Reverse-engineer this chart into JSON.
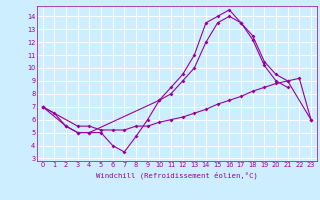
{
  "title": "",
  "xlabel": "Windchill (Refroidissement éolien,°C)",
  "ylabel": "",
  "bg_color": "#cceeff",
  "grid_color": "#ffffff",
  "line_color": "#990099",
  "xlim": [
    -0.5,
    23.5
  ],
  "ylim": [
    2.8,
    14.8
  ],
  "xticks": [
    0,
    1,
    2,
    3,
    4,
    5,
    6,
    7,
    8,
    9,
    10,
    11,
    12,
    13,
    14,
    15,
    16,
    17,
    18,
    19,
    20,
    21,
    22,
    23
  ],
  "yticks": [
    3,
    4,
    5,
    6,
    7,
    8,
    9,
    10,
    11,
    12,
    13,
    14
  ],
  "line1_x": [
    0,
    1,
    2,
    3,
    4,
    5,
    6,
    7,
    8,
    9,
    10,
    11,
    12,
    13,
    14,
    15,
    16,
    17,
    18,
    19,
    20,
    21
  ],
  "line1_y": [
    7.0,
    6.5,
    5.5,
    5.0,
    5.0,
    5.0,
    4.0,
    3.5,
    4.7,
    6.0,
    7.5,
    8.5,
    9.5,
    11.0,
    13.5,
    14.0,
    14.5,
    13.5,
    12.2,
    10.2,
    9.0,
    8.5
  ],
  "line2_x": [
    0,
    3,
    4,
    5,
    6,
    7,
    8,
    9,
    10,
    11,
    12,
    13,
    14,
    15,
    16,
    17,
    18,
    19,
    20,
    21,
    22,
    23
  ],
  "line2_y": [
    7.0,
    5.5,
    5.5,
    5.2,
    5.2,
    5.2,
    5.5,
    5.5,
    5.8,
    6.0,
    6.2,
    6.5,
    6.8,
    7.2,
    7.5,
    7.8,
    8.2,
    8.5,
    8.8,
    9.0,
    9.2,
    6.0
  ],
  "line3_x": [
    0,
    2,
    3,
    4,
    10,
    11,
    12,
    13,
    14,
    15,
    16,
    17,
    18,
    19,
    20,
    21,
    23
  ],
  "line3_y": [
    7.0,
    5.5,
    5.0,
    5.0,
    7.5,
    8.0,
    9.0,
    10.0,
    12.0,
    13.5,
    14.0,
    13.5,
    12.5,
    10.5,
    9.5,
    9.0,
    6.0
  ],
  "xlabel_fontsize": 5.2,
  "tick_fontsize": 4.8
}
